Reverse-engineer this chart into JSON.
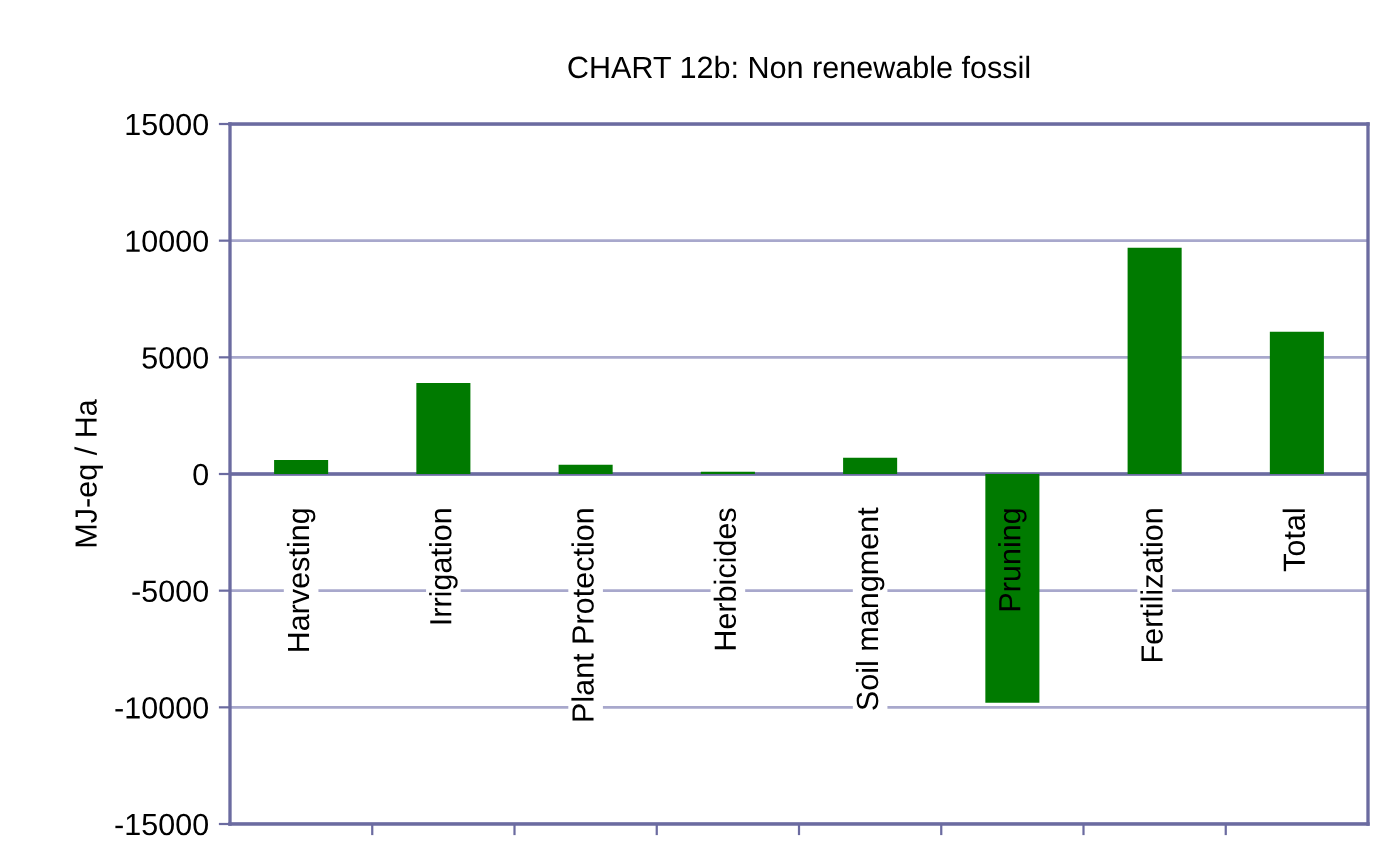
{
  "chart_data": {
    "type": "bar",
    "title": "CHART 12b: Non renewable fossil",
    "ylabel": "MJ-eq / Ha",
    "categories": [
      "Harvesting",
      "Irrigation",
      "Plant Protection",
      "Herbicides",
      "Soil mangment",
      "Pruning",
      "Fertilization",
      "Total"
    ],
    "values": [
      600,
      3900,
      400,
      100,
      700,
      -9800,
      9700,
      6100
    ],
    "color": "#007a00",
    "ylim": [
      -15000,
      15000
    ],
    "yticks": [
      -15000,
      -10000,
      -5000,
      0,
      5000,
      10000,
      15000
    ],
    "grid": "y"
  }
}
